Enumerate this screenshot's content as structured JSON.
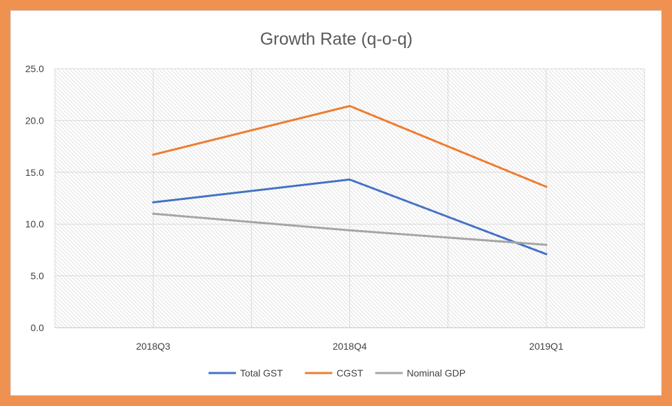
{
  "chart_data": {
    "type": "line",
    "title": "Growth Rate (q-o-q)",
    "xlabel": "",
    "ylabel": "",
    "categories": [
      "2018Q3",
      "2018Q4",
      "2019Q1"
    ],
    "ylim": [
      0,
      25
    ],
    "ytick_values": [
      0,
      5,
      10,
      15,
      20,
      25
    ],
    "ytick_labels": [
      "0.0",
      "5.0",
      "10.0",
      "15.0",
      "20.0",
      "25.0"
    ],
    "legend_position": "bottom",
    "grid": true,
    "series": [
      {
        "name": "Total GST",
        "values": [
          12.1,
          14.3,
          7.1
        ],
        "color": "#4472c4"
      },
      {
        "name": "CGST",
        "values": [
          16.7,
          21.4,
          13.6
        ],
        "color": "#ed7d31"
      },
      {
        "name": "Nominal GDP",
        "values": [
          11.0,
          9.4,
          8.0
        ],
        "color": "#a5a5a5"
      }
    ]
  },
  "frame_color": "#ef9150"
}
